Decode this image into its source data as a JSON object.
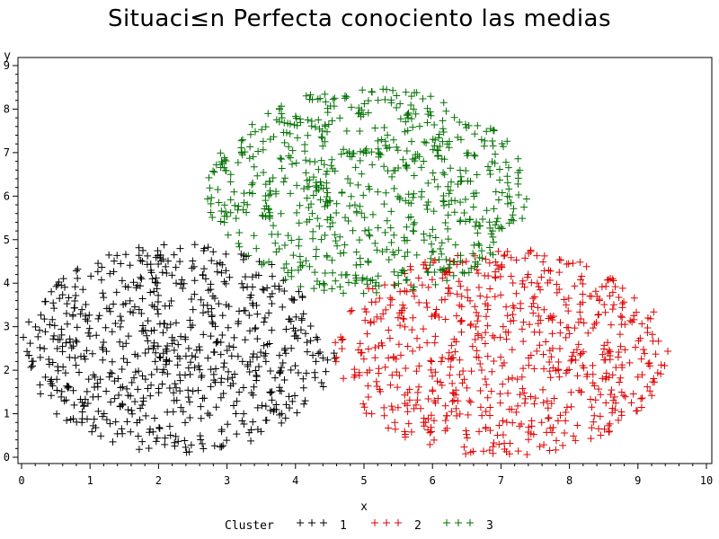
{
  "chart_data": {
    "type": "scatter",
    "title": "Situaci≤n Perfecta conociento las medias",
    "xlabel": "x",
    "ylabel": "y",
    "xlim": [
      0,
      10
    ],
    "ylim": [
      0,
      9
    ],
    "xticks": [
      "0",
      "1",
      "2",
      "3",
      "4",
      "5",
      "6",
      "7",
      "8",
      "9",
      "10"
    ],
    "yticks": [
      "0",
      "1",
      "2",
      "3",
      "4",
      "5",
      "6",
      "7",
      "8",
      "9"
    ],
    "marker": "+",
    "grid": false,
    "legend": {
      "title": "Cluster",
      "placement": "bottom",
      "entries": [
        "1",
        "2",
        "3"
      ]
    },
    "series": [
      {
        "name": "1",
        "color": "#000000",
        "center": [
          2.3,
          2.5
        ],
        "radius": [
          2.3,
          2.4
        ],
        "count": 700
      },
      {
        "name": "2",
        "color": "#e00000",
        "center": [
          7.0,
          2.4
        ],
        "radius": [
          2.45,
          2.4
        ],
        "count": 700
      },
      {
        "name": "3",
        "color": "#007000",
        "center": [
          5.05,
          6.1
        ],
        "radius": [
          2.35,
          2.4
        ],
        "count": 700
      }
    ]
  }
}
